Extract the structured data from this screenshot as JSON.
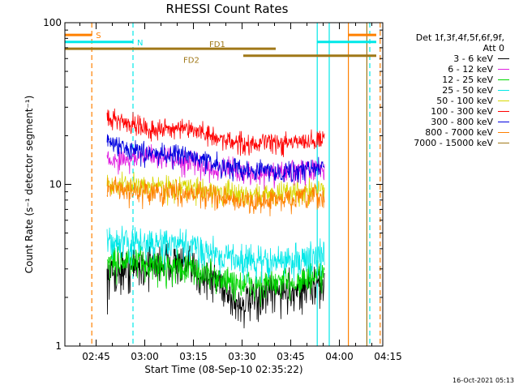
{
  "chart_data": {
    "type": "line",
    "title": "RHESSI Count Rates",
    "xlabel": "Start Time (08-Sep-10 02:35:22)",
    "ylabel": "Count Rate (s⁻¹ detector segment⁻¹)",
    "y_scale": "log",
    "ylim": [
      1,
      100
    ],
    "y_ticks": [
      "1",
      "10",
      "100"
    ],
    "x_unit": "minutes after 02:35:22",
    "xlim": [
      0,
      98
    ],
    "x_ticks": [
      {
        "v": 9.63,
        "label": "02:45"
      },
      {
        "v": 24.63,
        "label": "03:00"
      },
      {
        "v": 39.63,
        "label": "03:15"
      },
      {
        "v": 54.63,
        "label": "03:30"
      },
      {
        "v": 69.63,
        "label": "03:45"
      },
      {
        "v": 84.63,
        "label": "04:00"
      },
      {
        "v": 99.63,
        "label": "04:15"
      }
    ],
    "legend_header": [
      "Det 1f,3f,4f,5f,6f,9f,",
      "Att 0"
    ],
    "legend_position": "right",
    "data_range": [
      13,
      80
    ],
    "series": [
      {
        "name": "3 - 6 keV",
        "color": "#000000",
        "noise": 0.45,
        "x": [
          13,
          18,
          25,
          33,
          40,
          48,
          53,
          58,
          63,
          68,
          73,
          80
        ],
        "y": [
          2.7,
          3.0,
          3.2,
          3.4,
          2.9,
          2.5,
          1.8,
          1.9,
          2.1,
          2.2,
          2.3,
          2.4
        ]
      },
      {
        "name": "6 - 12 keV",
        "color": "#e020e0",
        "noise": 0.25,
        "x": [
          13,
          20,
          27,
          33,
          38,
          43,
          48,
          55,
          62,
          70,
          80
        ],
        "y": [
          14.0,
          14.5,
          15.0,
          14.5,
          13.8,
          13.0,
          12.5,
          11.8,
          11.5,
          12.0,
          12.5
        ]
      },
      {
        "name": "12 - 25 keV",
        "color": "#00d800",
        "noise": 0.35,
        "x": [
          13,
          20,
          27,
          35,
          42,
          48,
          55,
          62,
          70,
          80
        ],
        "y": [
          3.4,
          3.3,
          3.2,
          3.1,
          2.9,
          2.6,
          2.4,
          2.4,
          2.5,
          2.7
        ]
      },
      {
        "name": "25 - 50 keV",
        "color": "#00e8e8",
        "noise": 0.35,
        "x": [
          13,
          20,
          27,
          35,
          42,
          48,
          55,
          62,
          70,
          80
        ],
        "y": [
          4.5,
          4.3,
          4.3,
          4.2,
          4.0,
          3.7,
          3.4,
          3.3,
          3.4,
          3.6
        ]
      },
      {
        "name": "50 - 100 keV",
        "color": "#d8d800",
        "noise": 0.25,
        "x": [
          13,
          20,
          27,
          35,
          42,
          48,
          55,
          62,
          70,
          80
        ],
        "y": [
          10.0,
          9.8,
          9.8,
          9.6,
          9.3,
          8.9,
          8.6,
          8.7,
          9.0,
          9.3
        ]
      },
      {
        "name": "100 - 300 keV",
        "color": "#ff0000",
        "noise": 0.22,
        "x": [
          13,
          20,
          27,
          35,
          42,
          48,
          55,
          62,
          70,
          80
        ],
        "y": [
          26,
          24,
          22,
          22,
          21,
          19,
          18,
          18,
          18,
          19
        ]
      },
      {
        "name": "300 - 800 keV",
        "color": "#0000e0",
        "noise": 0.22,
        "x": [
          13,
          18,
          25,
          33,
          40,
          48,
          55,
          62,
          70,
          80
        ],
        "y": [
          18.5,
          17.0,
          15.5,
          15.5,
          14.8,
          13.0,
          12.5,
          12.2,
          12.0,
          12.8
        ]
      },
      {
        "name": "800 - 7000 keV",
        "color": "#ff8000",
        "noise": 0.25,
        "x": [
          13,
          20,
          27,
          35,
          42,
          48,
          55,
          62,
          70,
          80
        ],
        "y": [
          9.5,
          9.2,
          9.0,
          9.0,
          8.8,
          8.2,
          7.8,
          7.9,
          8.1,
          8.4
        ]
      },
      {
        "name": "7000 - 15000 keV",
        "color": "#a07818",
        "noise": 0,
        "x": [],
        "y": []
      }
    ],
    "markers": [
      {
        "kind": "vline",
        "x": 8.3,
        "color": "#ff8000",
        "style": "dashed"
      },
      {
        "kind": "vline",
        "x": 21.0,
        "color": "#00e8e8",
        "style": "dashed"
      },
      {
        "kind": "vline",
        "x": 94.0,
        "color": "#00e8e8",
        "style": "dashed"
      },
      {
        "kind": "vline",
        "x": 97.2,
        "color": "#ff8000",
        "style": "dashed"
      },
      {
        "kind": "vline",
        "x": 77.8,
        "color": "#00e8e8",
        "style": "solid"
      },
      {
        "kind": "vline",
        "x": 81.5,
        "color": "#00e8e8",
        "style": "solid"
      },
      {
        "kind": "vline",
        "x": 87.4,
        "color": "#ff8000",
        "style": "solid"
      },
      {
        "kind": "vline",
        "x": 93.1,
        "color": "#a07818",
        "style": "solid"
      }
    ],
    "bands": [
      {
        "label": "S",
        "color": "#ff8000",
        "y": 84,
        "segments": [
          [
            0,
            8.3
          ],
          [
            87.4,
            96.0
          ]
        ]
      },
      {
        "label": "N",
        "color": "#00e8e8",
        "y": 76,
        "segments": [
          [
            0,
            21.0
          ],
          [
            77.8,
            96.0
          ]
        ]
      },
      {
        "label": "FD1",
        "color": "#a07818",
        "y": 69,
        "segments": [
          [
            0,
            65.0
          ]
        ]
      },
      {
        "label": "FD2",
        "color": "#a07818",
        "y": 62.5,
        "segments": [
          [
            55.0,
            96.0
          ]
        ]
      }
    ]
  },
  "timestamp": "16-Oct-2021 05:13"
}
